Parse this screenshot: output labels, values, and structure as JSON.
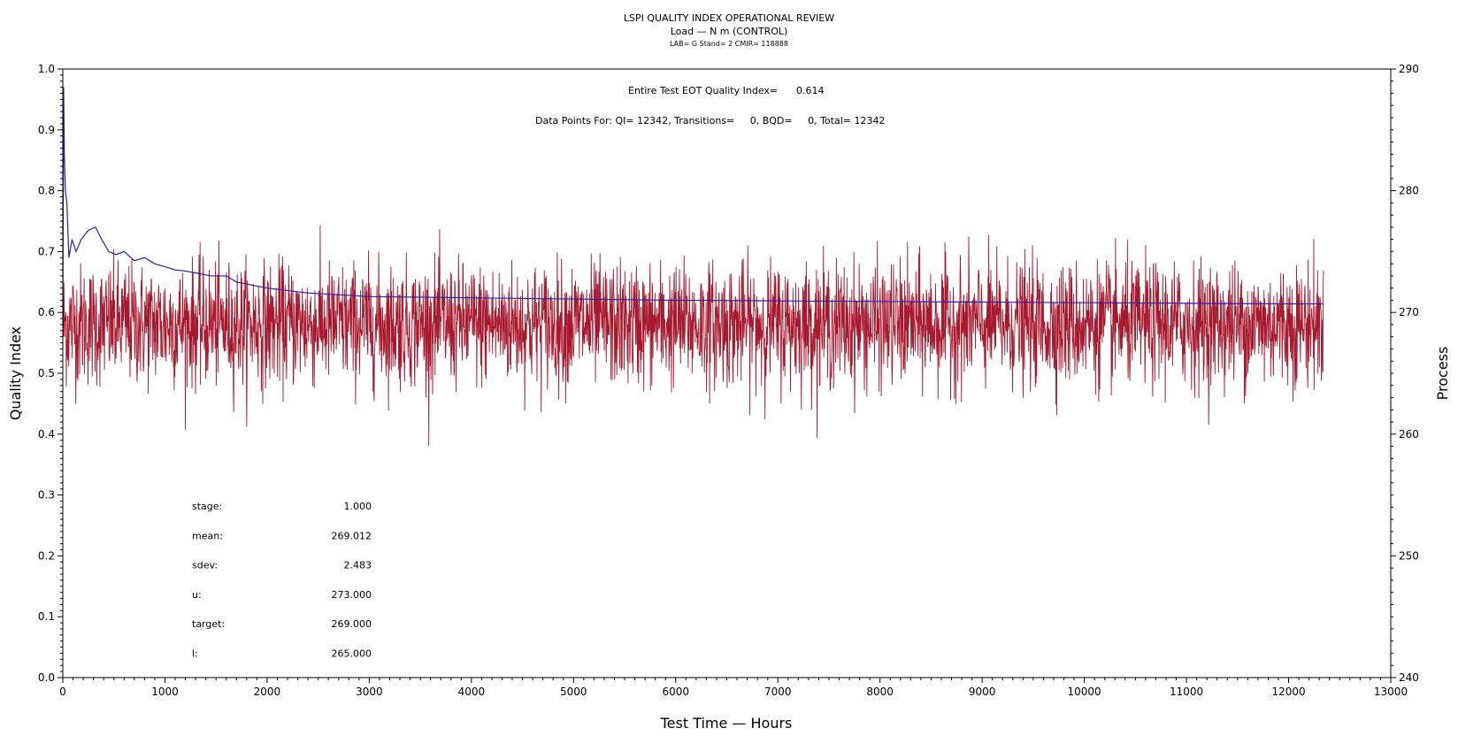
{
  "chart_data": {
    "type": "line",
    "title": "LSPI QUALITY INDEX OPERATIONAL REVIEW",
    "subtitle": "Load — N m (CONTROL)",
    "subsubtitle": "LAB= G Stand= 2 CMIR= 118888",
    "xlabel": "Test Time — Hours",
    "ylabel": "Quality Index",
    "y2label": "Process",
    "xlim": [
      0,
      13000
    ],
    "ylim": [
      0.0,
      1.0
    ],
    "y2lim": [
      240,
      290
    ],
    "xticks": [
      "0",
      "1000",
      "2000",
      "3000",
      "4000",
      "5000",
      "6000",
      "7000",
      "8000",
      "9000",
      "10000",
      "11000",
      "12000",
      "13000"
    ],
    "yticks": [
      "0.0",
      "0.1",
      "0.2",
      "0.3",
      "0.4",
      "0.5",
      "0.6",
      "0.7",
      "0.8",
      "0.9",
      "1.0"
    ],
    "y2ticks": [
      "240",
      "250",
      "260",
      "270",
      "280",
      "290"
    ],
    "annotations": {
      "eot_label": "Entire Test EOT Quality Index=",
      "eot_value": "0.614",
      "data_points": "Data Points For: QI= 12342, Transitions=     0, BQD=     0, Total= 12342"
    },
    "stats": [
      {
        "label": "stage:",
        "value": "1.000"
      },
      {
        "label": "mean:",
        "value": "269.012"
      },
      {
        "label": "sdev:",
        "value": "2.483"
      },
      {
        "label": "u:",
        "value": "273.000"
      },
      {
        "label": "target:",
        "value": "269.000"
      },
      {
        "label": "l:",
        "value": "265.000"
      }
    ],
    "series": [
      {
        "name": "",
        "axis": "right",
        "color": "#a8192e",
        "x_range": [
          0,
          12342
        ],
        "mean": 269.012,
        "sdev": 2.483,
        "min": 256.6,
        "max": 277.5
      },
      {
        "name": "",
        "axis": "left",
        "color": "#2a1fb0",
        "points": [
          [
            0,
            0.58
          ],
          [
            8,
            0.97
          ],
          [
            15,
            0.86
          ],
          [
            25,
            0.8
          ],
          [
            40,
            0.78
          ],
          [
            60,
            0.69
          ],
          [
            90,
            0.72
          ],
          [
            130,
            0.7
          ],
          [
            180,
            0.72
          ],
          [
            250,
            0.735
          ],
          [
            320,
            0.74
          ],
          [
            380,
            0.72
          ],
          [
            450,
            0.7
          ],
          [
            520,
            0.695
          ],
          [
            600,
            0.7
          ],
          [
            700,
            0.685
          ],
          [
            800,
            0.69
          ],
          [
            900,
            0.68
          ],
          [
            1000,
            0.675
          ],
          [
            1100,
            0.67
          ],
          [
            1200,
            0.668
          ],
          [
            1300,
            0.665
          ],
          [
            1450,
            0.66
          ],
          [
            1600,
            0.66
          ],
          [
            1700,
            0.65
          ],
          [
            2000,
            0.64
          ],
          [
            2400,
            0.632
          ],
          [
            3000,
            0.626
          ],
          [
            4000,
            0.624
          ],
          [
            5000,
            0.622
          ],
          [
            6000,
            0.62
          ],
          [
            7000,
            0.619
          ],
          [
            8000,
            0.618
          ],
          [
            9000,
            0.617
          ],
          [
            10000,
            0.616
          ],
          [
            11000,
            0.615
          ],
          [
            12000,
            0.614
          ],
          [
            12342,
            0.614
          ]
        ]
      }
    ]
  }
}
